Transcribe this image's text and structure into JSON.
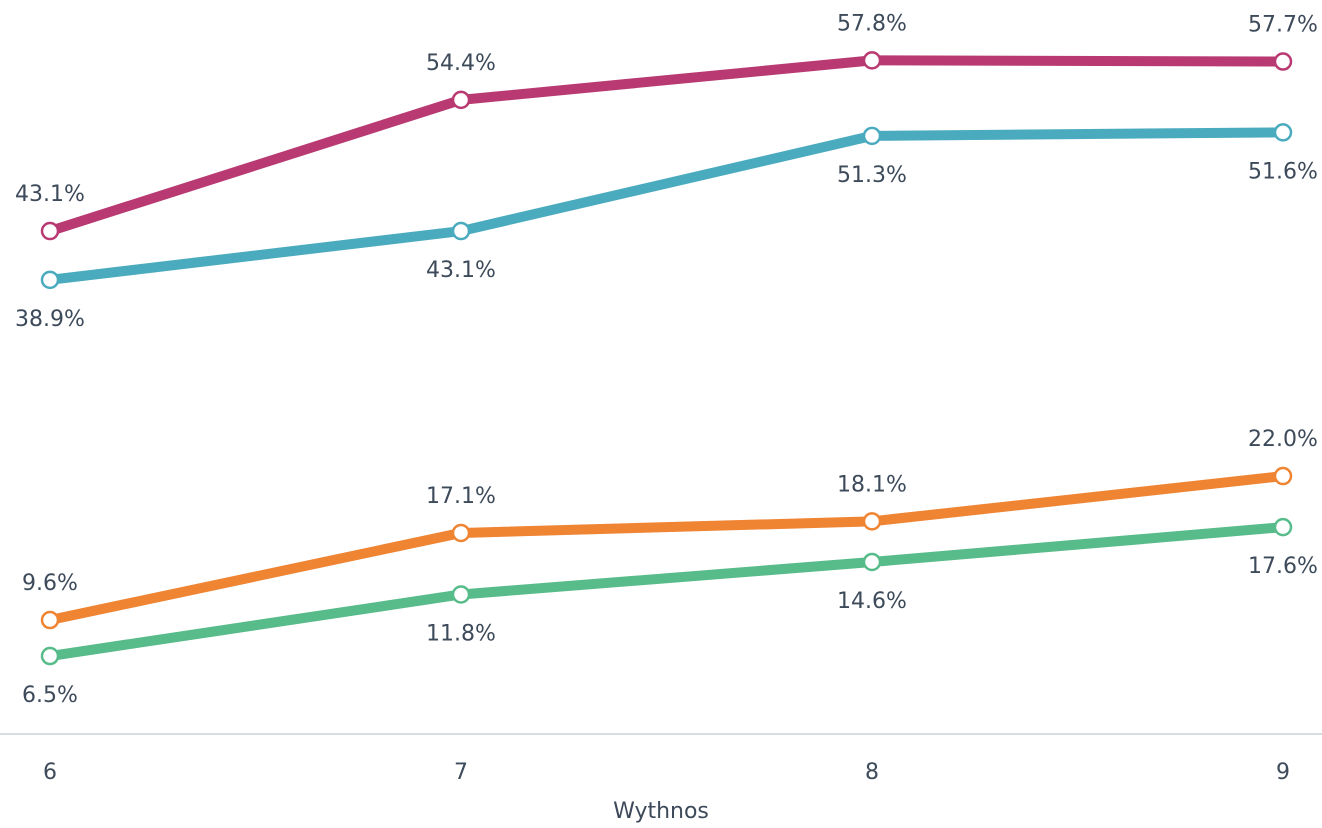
{
  "chart_data": {
    "type": "line",
    "x_label": "Wythnos",
    "categories": [
      "6",
      "7",
      "8",
      "9"
    ],
    "ylim": [
      0,
      63
    ],
    "series": [
      {
        "color": "#b93a72",
        "values": [
          43.1,
          54.4,
          57.8,
          57.7
        ],
        "value_labels": [
          "43.1%",
          "54.4%",
          "57.8%",
          "57.7%"
        ]
      },
      {
        "color": "#4aabbf",
        "values": [
          38.9,
          43.1,
          51.3,
          51.6
        ],
        "value_labels": [
          "38.9%",
          "43.1%",
          "51.3%",
          "51.6%"
        ]
      },
      {
        "color": "#ef8433",
        "values": [
          9.6,
          17.1,
          18.1,
          22.0
        ],
        "value_labels": [
          "9.6%",
          "17.1%",
          "18.1%",
          "22.0%"
        ]
      },
      {
        "color": "#58bb8a",
        "values": [
          6.5,
          11.8,
          14.6,
          17.6
        ],
        "value_labels": [
          "6.5%",
          "11.8%",
          "14.6%",
          "17.6%"
        ]
      }
    ]
  }
}
